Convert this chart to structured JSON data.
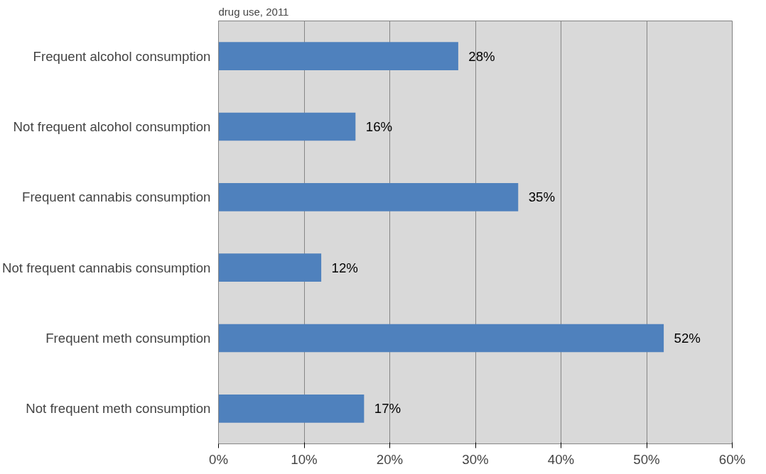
{
  "chart_data": {
    "type": "bar",
    "orientation": "horizontal",
    "title": "drug use, 2011",
    "categories": [
      "Frequent alcohol consumption",
      "Not frequent alcohol consumption",
      "Frequent cannabis consumption",
      "Not frequent cannabis consumption",
      "Frequent meth consumption",
      "Not frequent meth consumption"
    ],
    "values": [
      28,
      16,
      35,
      12,
      52,
      17
    ],
    "color": "#4f81bd",
    "xlim": [
      0,
      60
    ],
    "xticks": [
      {
        "value": 0,
        "label": "0%"
      },
      {
        "value": 10,
        "label": "10%"
      },
      {
        "value": 20,
        "label": "20%"
      },
      {
        "value": 30,
        "label": "30%"
      },
      {
        "value": 40,
        "label": "40%"
      },
      {
        "value": 50,
        "label": "50%"
      },
      {
        "value": 60,
        "label": "60%"
      }
    ],
    "value_labels": [
      "28%",
      "16%",
      "35%",
      "12%",
      "52%",
      "17%"
    ],
    "grid": "x"
  }
}
